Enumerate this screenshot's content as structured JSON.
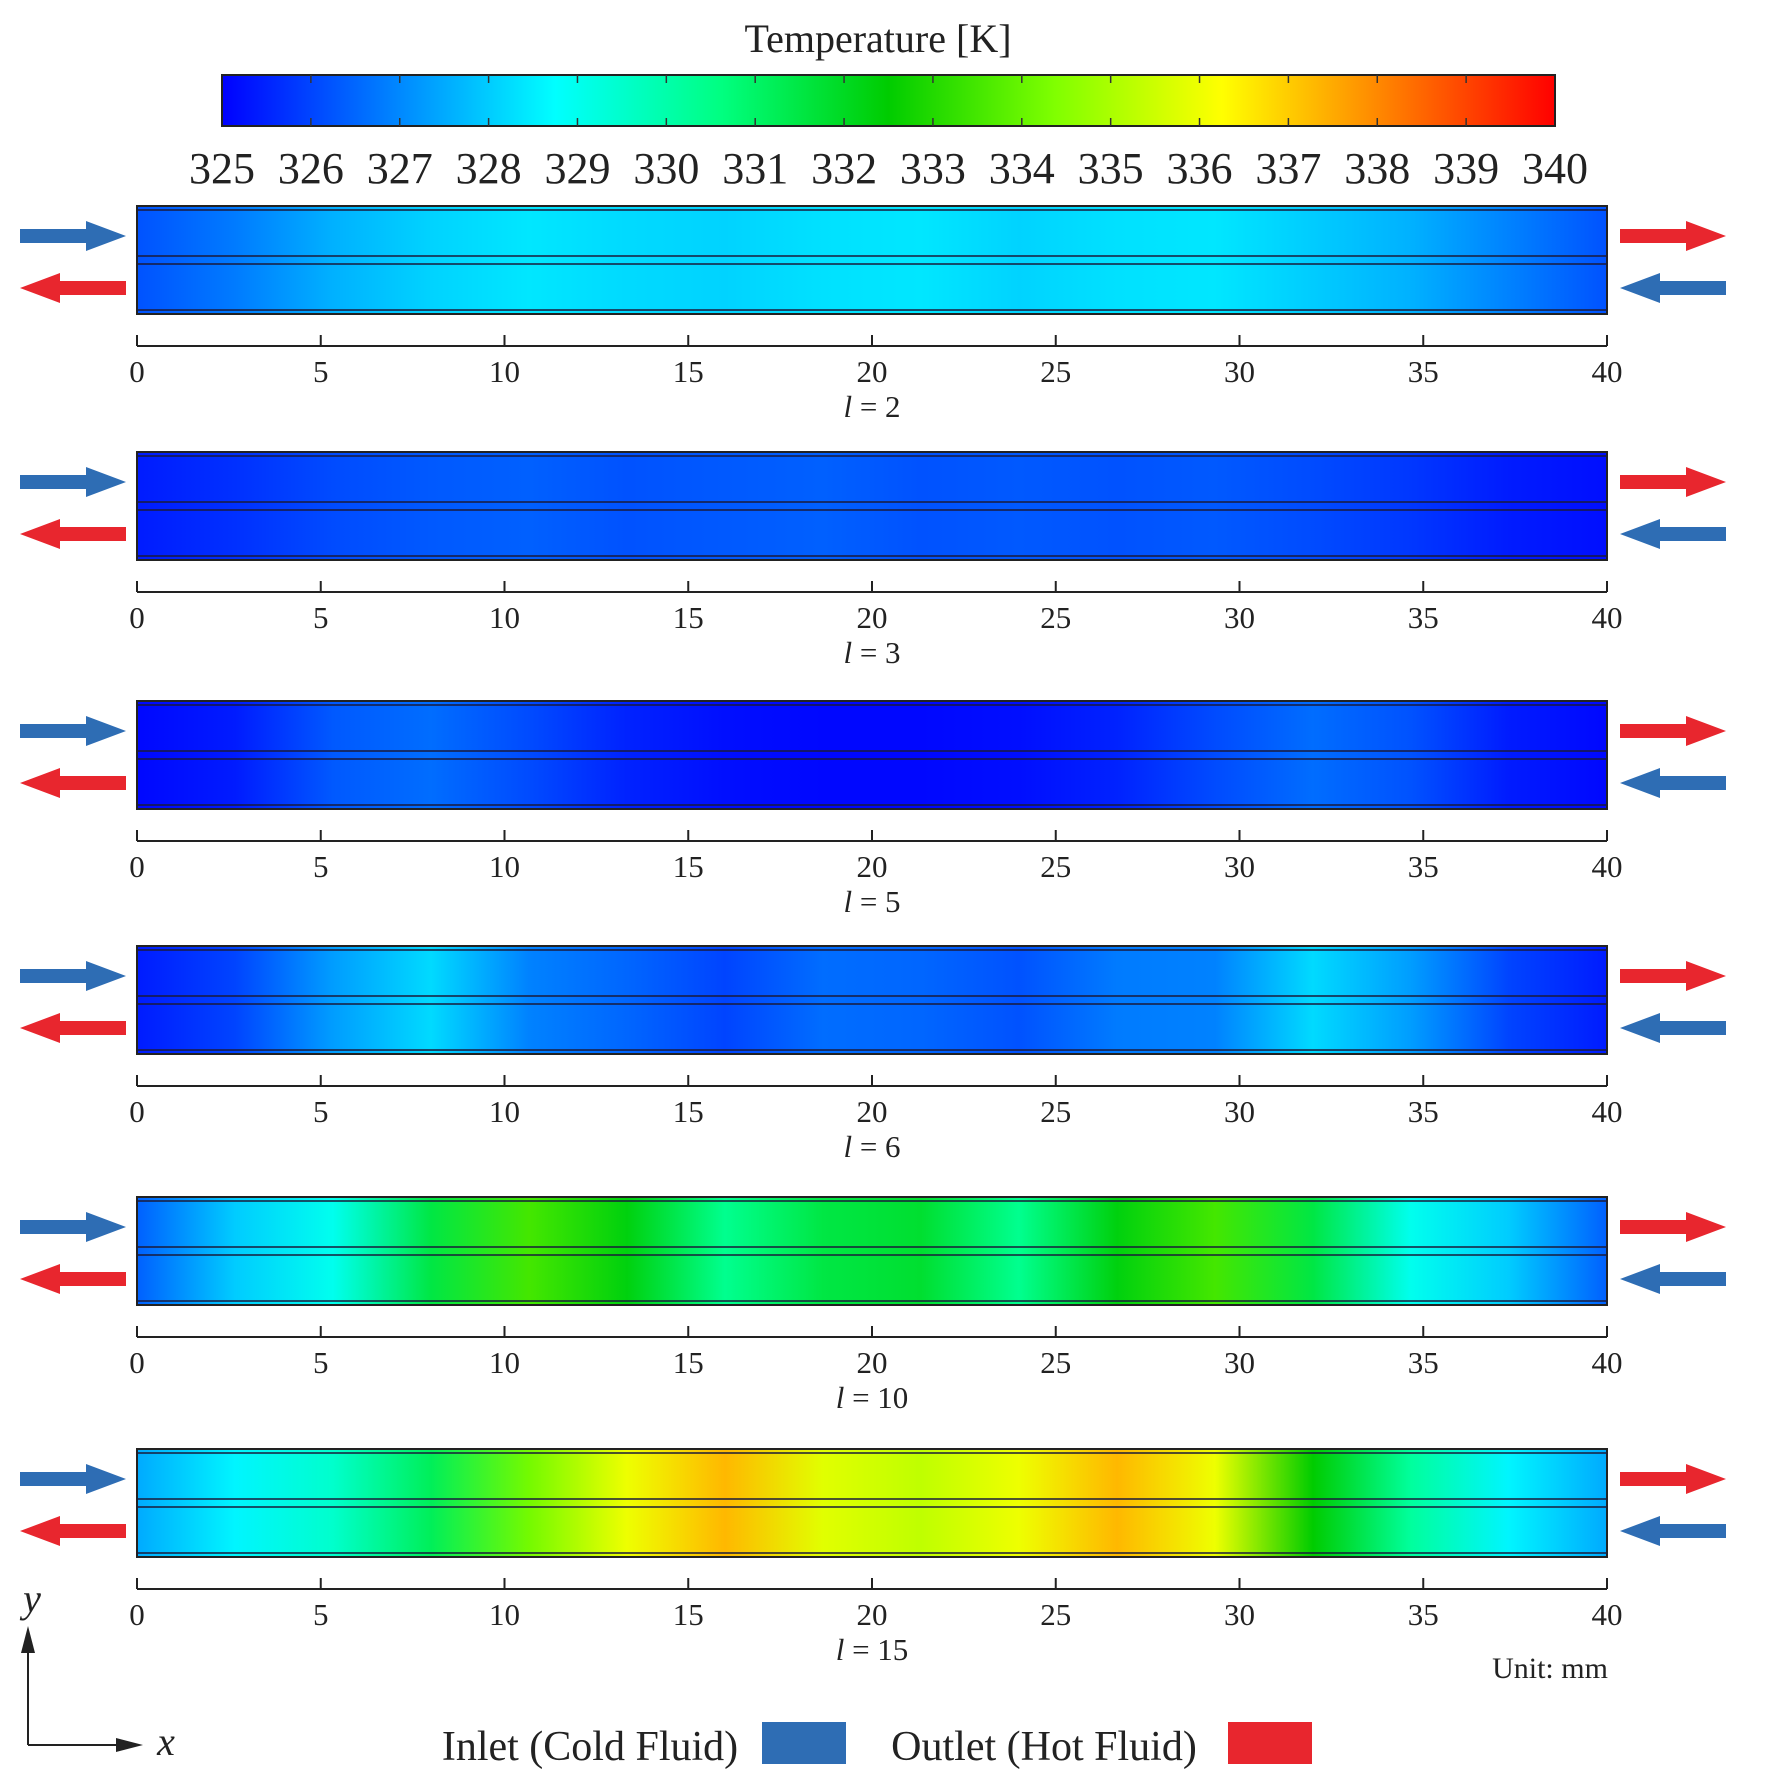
{
  "colorbar": {
    "title": "Temperature [K]",
    "min": 325,
    "max": 340,
    "ticks": [
      "325",
      "326",
      "327",
      "328",
      "329",
      "330",
      "331",
      "332",
      "333",
      "334",
      "335",
      "336",
      "337",
      "338",
      "339",
      "340"
    ],
    "colormap": [
      "#0000ff",
      "#0080ff",
      "#00ffff",
      "#00ff80",
      "#00cc00",
      "#80ff00",
      "#ffff00",
      "#ff8000",
      "#ff0000"
    ]
  },
  "axis_ticks": [
    "0",
    "5",
    "10",
    "15",
    "20",
    "25",
    "30",
    "35",
    "40"
  ],
  "panels": [
    {
      "label": "l = 2",
      "temp_profile": [
        326.2,
        326.8,
        327.6,
        328.1,
        328.4,
        328.2,
        328.1,
        328.3,
        328.4,
        328.1,
        328.3,
        328.4,
        328.0,
        327.6,
        326.9,
        326.2
      ]
    },
    {
      "label": "l = 3",
      "temp_profile": [
        325.4,
        325.7,
        326.1,
        326.3,
        326.4,
        326.2,
        326.3,
        326.4,
        326.2,
        326.3,
        326.2,
        326.3,
        326.1,
        325.8,
        325.4,
        325.2
      ]
    },
    {
      "label": "l = 5",
      "temp_profile": [
        325.1,
        325.4,
        326.3,
        326.6,
        326.1,
        325.5,
        325.2,
        325.1,
        325.1,
        325.2,
        325.5,
        326.1,
        326.6,
        326.2,
        325.4,
        325.1
      ]
    },
    {
      "label": "l = 6",
      "temp_profile": [
        325.4,
        326.0,
        327.3,
        328.2,
        326.9,
        326.5,
        326.0,
        326.6,
        326.5,
        326.2,
        326.8,
        326.9,
        328.2,
        327.3,
        326.0,
        325.4
      ]
    },
    {
      "label": "l = 10",
      "temp_profile": [
        326.4,
        328.0,
        329.0,
        331.5,
        333.5,
        332.3,
        330.4,
        331.5,
        331.8,
        330.4,
        332.3,
        333.5,
        331.5,
        329.0,
        328.0,
        326.4
      ]
    },
    {
      "label": "l = 15",
      "temp_profile": [
        327.5,
        328.6,
        329.5,
        331.2,
        334.2,
        336.0,
        337.3,
        335.8,
        335.3,
        336.0,
        337.3,
        336.0,
        332.5,
        330.2,
        328.6,
        327.5
      ]
    }
  ],
  "axes": {
    "y": "y",
    "x": "x"
  },
  "unit_label": "Unit: mm",
  "legend": {
    "inlet": {
      "label": "Inlet (Cold Fluid)",
      "color": "#2e6db4"
    },
    "outlet": {
      "label": "Outlet (Hot Fluid)",
      "color": "#e8262e"
    }
  }
}
